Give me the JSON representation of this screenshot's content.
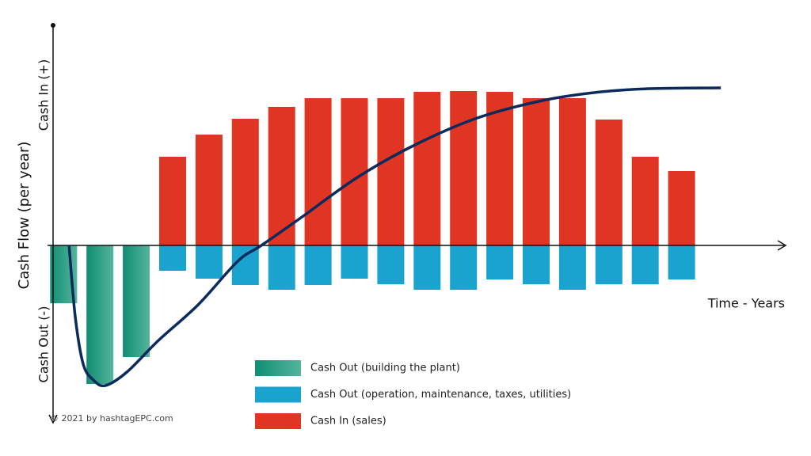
{
  "chart_data": {
    "type": "bar",
    "stacked": true,
    "y_label_top": "Cash In (+)",
    "y_label": "Cash Flow (per year)",
    "y_label_bottom": "Cash Out (-)",
    "x_label": "Time  - Years",
    "credit": "© 2021 by hashtagEPC.com",
    "categories": [
      null,
      null,
      null,
      null,
      null,
      null,
      null,
      null,
      null,
      null,
      null,
      null,
      null,
      null,
      null,
      null,
      null,
      null
    ],
    "ylim": [
      -22,
      28
    ],
    "series": [
      {
        "name": "Cash Out (building the plant)",
        "color": "#0f8e73",
        "color2": "#55b49c",
        "values": [
          -7.3,
          -17.5,
          -14.1,
          null,
          null,
          null,
          null,
          null,
          null,
          null,
          null,
          null,
          null,
          null,
          null,
          null,
          null,
          null
        ]
      },
      {
        "name": "Cash Out (operation, maintenance, taxes, utilities)",
        "color": "#1aa3cf",
        "values": [
          null,
          null,
          null,
          -3.2,
          -4.2,
          -5,
          -5.6,
          -5,
          -4.2,
          -4.9,
          -5.6,
          -5.6,
          -4.3,
          -4.9,
          -5.6,
          -4.9,
          -4.9,
          -4.3
        ]
      },
      {
        "name": "Cash In (sales)",
        "color": "#e03522",
        "values": [
          null,
          null,
          null,
          11.2,
          14,
          16,
          17.5,
          18.6,
          18.6,
          18.6,
          19.4,
          19.5,
          19.4,
          18.6,
          18.6,
          15.9,
          11.2,
          9.4
        ]
      }
    ],
    "curve": {
      "color": "#0d2a5c",
      "x": [
        0.15,
        0.32,
        0.54,
        0.82,
        1.15,
        1.74,
        2.61,
        3.7,
        4.79,
        5.44,
        6.53,
        8.05,
        9.58,
        11.32,
        13.07,
        14.59,
        16.12,
        18.08
      ],
      "y": [
        0,
        -9,
        -15,
        -17,
        -17.7,
        -16,
        -12,
        -7.5,
        -2,
        0,
        3.5,
        8.5,
        12.5,
        16,
        18.2,
        19.3,
        19.8,
        19.9
      ]
    }
  }
}
